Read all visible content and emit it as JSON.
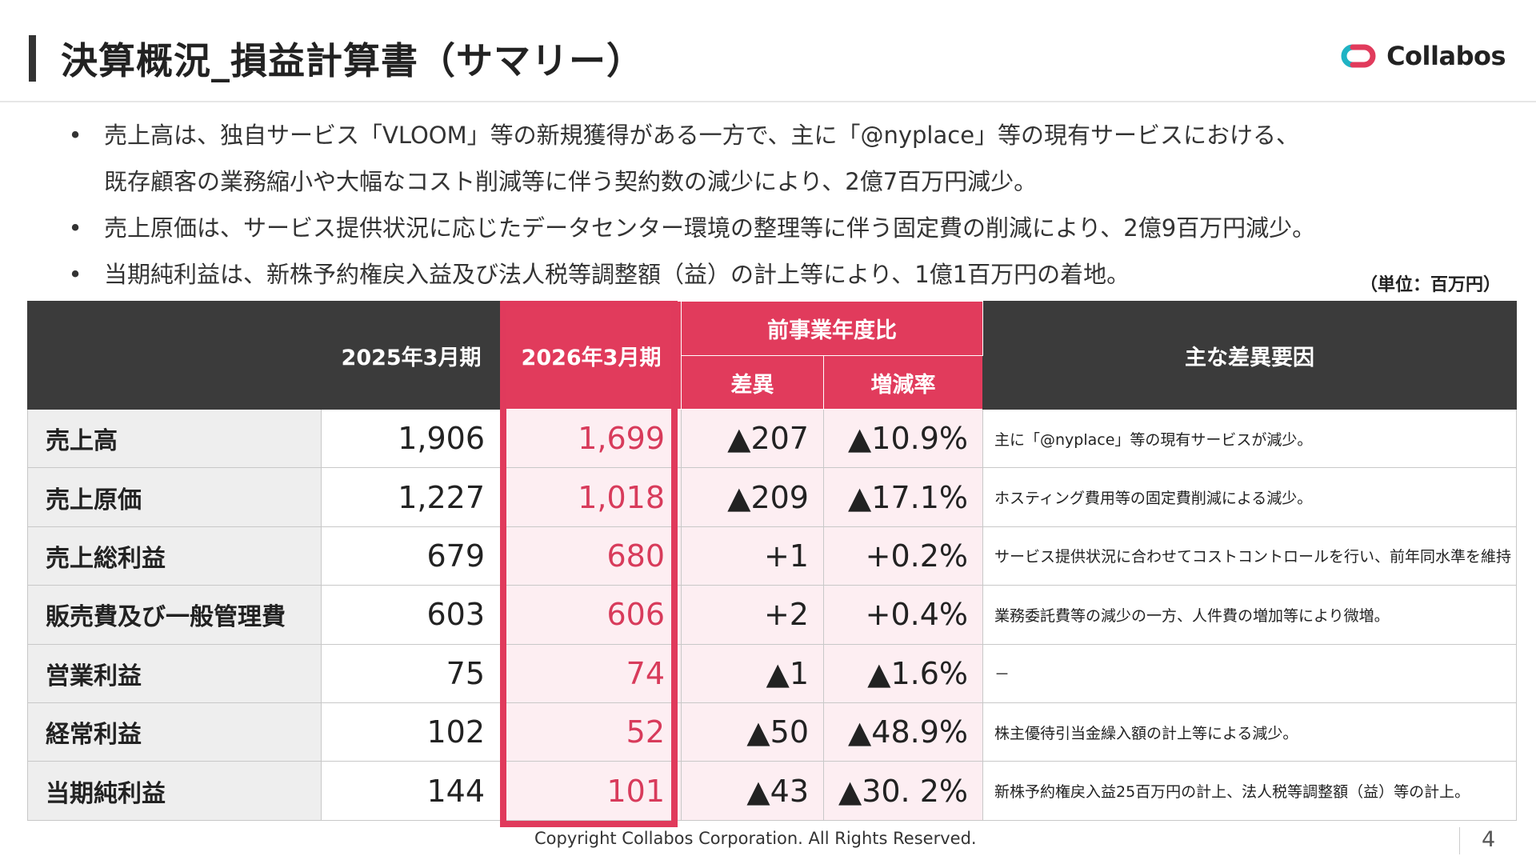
{
  "header": {
    "title": "決算概況_損益計算書（サマリー）",
    "logo_text": "Collabos"
  },
  "bullets": [
    {
      "lines": [
        "売上高は、独自サービス「VLOOM」等の新規獲得がある一方で、主に「@nyplace」等の現有サービスにおける、",
        "既存顧客の業務縮小や大幅なコスト削減等に伴う契約数の減少により、2億7百万円減少。"
      ]
    },
    {
      "lines": [
        "売上原価は、サービス提供状況に応じたデータセンター環境の整理等に伴う固定費の削減により、2億9百万円減少。"
      ]
    },
    {
      "lines": [
        "当期純利益は、新株予約権戻入益及び法人税等調整額（益）の計上等により、1億1百万円の着地。"
      ]
    }
  ],
  "unit": "（単位：百万円）",
  "table": {
    "headers": {
      "prev": "2025年3月期",
      "cur": "2026年3月期",
      "comparison": "前事業年度比",
      "diff": "差異",
      "rate": "増減率",
      "reason": "主な差異要因"
    },
    "rows": [
      {
        "label": "売上高",
        "prev": "1,906",
        "cur": "1,699",
        "diff": "▲207",
        "rate": "▲10.9%",
        "reason": "主に「@nyplace」等の現有サービスが減少。"
      },
      {
        "label": "売上原価",
        "prev": "1,227",
        "cur": "1,018",
        "diff": "▲209",
        "rate": "▲17.1%",
        "reason": "ホスティング費用等の固定費削減による減少。"
      },
      {
        "label": "売上総利益",
        "prev": "679",
        "cur": "680",
        "diff": "+1",
        "rate": "+0.2%",
        "reason": "サービス提供状況に合わせてコストコントロールを行い、前年同水準を維持"
      },
      {
        "label": "販売費及び一般管理費",
        "prev": "603",
        "cur": "606",
        "diff": "+2",
        "rate": "+0.4%",
        "reason": "業務委託費等の減少の一方、人件費の増加等により微増。"
      },
      {
        "label": "営業利益",
        "prev": "75",
        "cur": "74",
        "diff": "▲1",
        "rate": "▲1.6%",
        "reason": "－"
      },
      {
        "label": "経常利益",
        "prev": "102",
        "cur": "52",
        "diff": "▲50",
        "rate": "▲48.9%",
        "reason": "株主優待引当金繰入額の計上等による減少。"
      },
      {
        "label": "当期純利益",
        "prev": "144",
        "cur": "101",
        "diff": "▲43",
        "rate": "▲30. 2%",
        "reason": "新株予約権戻入益25百万円の計上、法人税等調整額（益）等の計上。"
      }
    ]
  },
  "footer": {
    "copyright": "Copyright Collabos Corporation. All Rights Reserved.",
    "page": "4"
  },
  "colors": {
    "accent": "#e13b5c",
    "header_dark": "#3b3b3b",
    "highlight_bg": "#fdeef2",
    "logo_teal": "#1fb3c4",
    "logo_pink": "#e13b5c"
  }
}
